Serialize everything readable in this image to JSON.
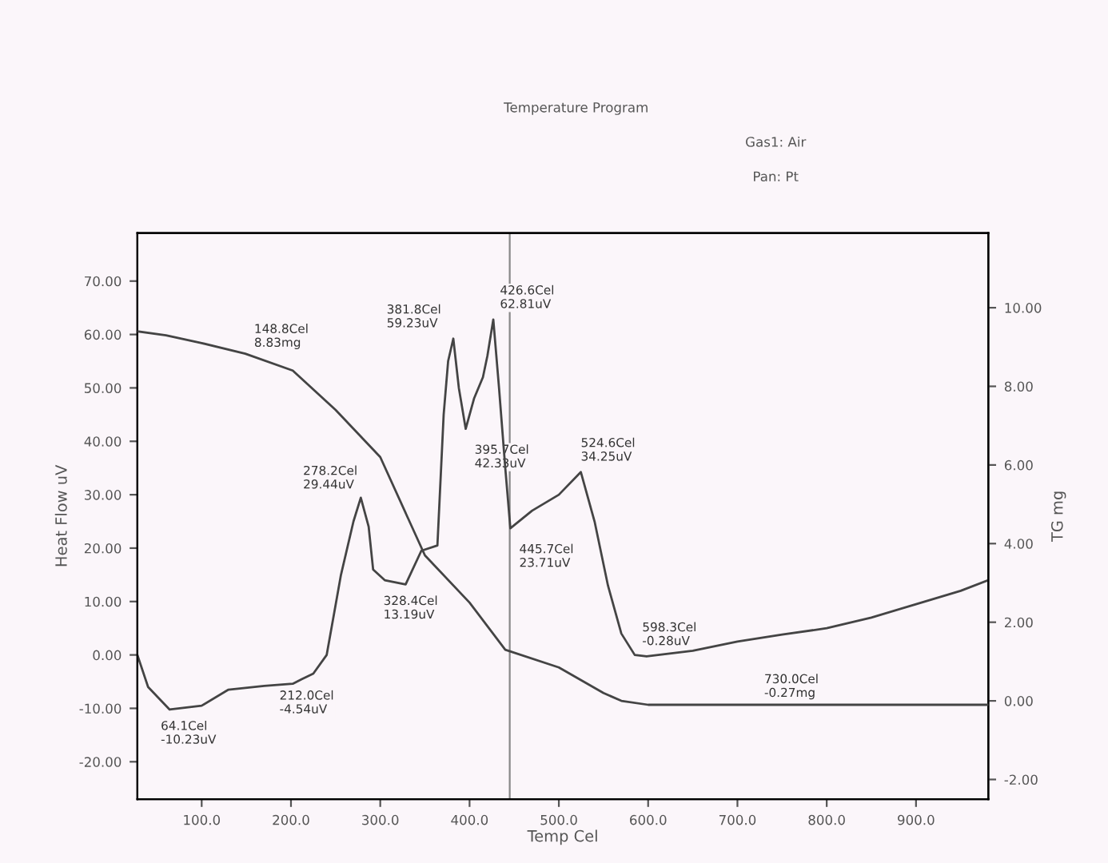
{
  "chart_data": {
    "type": "line",
    "xlabel": "Temp Cel",
    "ylabel": "Heat Flow uV",
    "y2label": "TG mg",
    "xlim": [
      28,
      981
    ],
    "xticks": [
      {
        "value": 100,
        "label": "100.0"
      },
      {
        "value": 200,
        "label": "200.0"
      },
      {
        "value": 300,
        "label": "300.0"
      },
      {
        "value": 400,
        "label": "400.0"
      },
      {
        "value": 500,
        "label": "500.0"
      },
      {
        "value": 600,
        "label": "600.0"
      },
      {
        "value": 700,
        "label": "700.0"
      },
      {
        "value": 800,
        "label": "800.0"
      },
      {
        "value": 900,
        "label": "900.0"
      }
    ],
    "ylim": [
      -27,
      79
    ],
    "yticks": [
      {
        "value": -20,
        "label": "-20.00"
      },
      {
        "value": -10,
        "label": "-10.00"
      },
      {
        "value": 0,
        "label": "0.00"
      },
      {
        "value": 10,
        "label": "10.00"
      },
      {
        "value": 20,
        "label": "20.00"
      },
      {
        "value": 30,
        "label": "30.00"
      },
      {
        "value": 40,
        "label": "40.00"
      },
      {
        "value": 50,
        "label": "50.00"
      },
      {
        "value": 60,
        "label": "60.00"
      },
      {
        "value": 70,
        "label": "70.00"
      }
    ],
    "y2lim": [
      -2.5,
      11.9
    ],
    "y2ticks": [
      {
        "value": -2,
        "label": "-2.00"
      },
      {
        "value": 0,
        "label": "0.00"
      },
      {
        "value": 2,
        "label": "2.00"
      },
      {
        "value": 4,
        "label": "4.00"
      },
      {
        "value": 6,
        "label": "6.00"
      },
      {
        "value": 8,
        "label": "8.00"
      },
      {
        "value": 10,
        "label": "10.00"
      }
    ],
    "grid": false,
    "marker": "none",
    "line_style": "solid",
    "series": [
      {
        "color": "#444444",
        "x": [
          28,
          40,
          64.1,
          100,
          130,
          170,
          202,
          212,
          225,
          240,
          256,
          270,
          278.2,
          287,
          292,
          305,
          328.4,
          346,
          364,
          371,
          376,
          381.8,
          388,
          395.7,
          405,
          415,
          420,
          426.6,
          433,
          440,
          445.7,
          470,
          500,
          524.6,
          540,
          555,
          570,
          585,
          598.3,
          650,
          700,
          750,
          800,
          850,
          900,
          950,
          981
        ],
        "values": [
          0,
          -6,
          -10.23,
          -9.5,
          -6.5,
          -5.8,
          -5.4,
          -4.54,
          -3.5,
          0,
          15,
          25,
          29.44,
          24,
          16,
          14,
          13.19,
          19.5,
          20.5,
          45,
          55,
          59.23,
          50,
          42.33,
          48,
          52,
          56,
          62.81,
          50,
          35,
          23.71,
          27,
          30,
          34.25,
          25,
          13,
          4,
          0,
          -0.28,
          0.8,
          2.5,
          3.8,
          5,
          7,
          9.5,
          12,
          14
        ]
      },
      {
        "color": "#444444",
        "axis": "y2",
        "x": [
          28,
          60,
          100,
          148.8,
          202,
          250,
          300,
          350,
          400,
          440,
          500,
          550,
          570,
          600,
          730,
          981
        ],
        "values": [
          9.4,
          9.3,
          9.1,
          8.83,
          8.4,
          7.4,
          6.2,
          3.7,
          2.5,
          1.3,
          0.85,
          0.2,
          0,
          -0.1,
          -0.1,
          -0.1
        ]
      }
    ],
    "ref_lines": [
      {
        "axis": "x",
        "value": 445,
        "color": "#888888"
      }
    ],
    "annotations": [
      {
        "text": "64.1Cel\n-10.23uV",
        "x": 64.1,
        "y": -10.23
      },
      {
        "text": "212.0Cel\n-4.54uV",
        "x": 212,
        "y": -4.54
      },
      {
        "text": "278.2Cel\n29.44uV",
        "x": 278.2,
        "y": 29.44
      },
      {
        "text": "328.4Cel\n13.19uV",
        "x": 328.4,
        "y": 13.19
      },
      {
        "text": "381.8Cel\n59.23uV",
        "x": 381.8,
        "y": 59.23
      },
      {
        "text": "395.7Cel\n42.33uV",
        "x": 395.7,
        "y": 42.33
      },
      {
        "text": "426.6Cel\n62.81uV",
        "x": 426.6,
        "y": 62.81
      },
      {
        "text": "445.7Cel\n23.71uV",
        "x": 445.7,
        "y": 23.71
      },
      {
        "text": "524.6Cel\n34.25uV",
        "x": 524.6,
        "y": 34.25
      },
      {
        "text": "598.3Cel\n-0.28uV",
        "x": 598.3,
        "y": -0.28
      },
      {
        "text": "148.8Cel\n8.83mg",
        "x": 148.8,
        "y": 56
      },
      {
        "text": "730.0Cel\n-0.27mg",
        "x": 730,
        "y": -10.4
      },
      "Temperature Program",
      "Gas1: Air",
      "Pan: Pt"
    ]
  }
}
